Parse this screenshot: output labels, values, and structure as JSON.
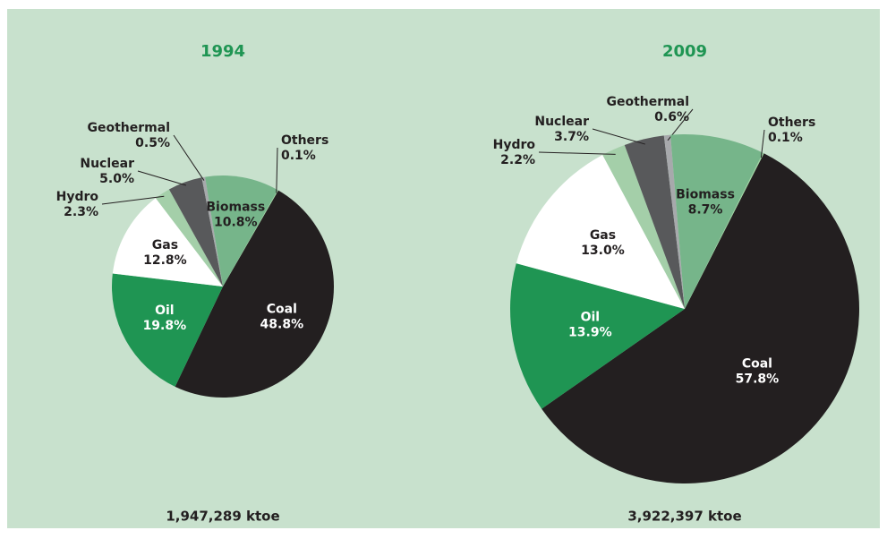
{
  "chart_data": [
    {
      "type": "pie",
      "title": "1994",
      "categories": [
        "Coal",
        "Oil",
        "Gas",
        "Hydro",
        "Nuclear",
        "Geothermal",
        "Biomass",
        "Others"
      ],
      "values": [
        48.8,
        19.8,
        12.8,
        2.3,
        5.0,
        0.5,
        10.8,
        0.1
      ],
      "value_labels": [
        "48.8%",
        "19.8%",
        "12.8%",
        "2.3%",
        "5.0%",
        "0.5%",
        "10.8%",
        "0.1%"
      ],
      "colors": [
        "#231f20",
        "#1f9553",
        "#ffffff",
        "#a4cfa9",
        "#58595b",
        "#a7a9ac",
        "#76b58a",
        "#9fd3a0"
      ],
      "footnote": "1,947,289 ktoe"
    },
    {
      "type": "pie",
      "title": "2009",
      "categories": [
        "Coal",
        "Oil",
        "Gas",
        "Hydro",
        "Nuclear",
        "Geothermal",
        "Biomass",
        "Others"
      ],
      "values": [
        57.8,
        13.9,
        13.0,
        2.2,
        3.7,
        0.6,
        8.7,
        0.1
      ],
      "value_labels": [
        "57.8%",
        "13.9%",
        "13.0%",
        "2.2%",
        "3.7%",
        "0.6%",
        "8.7%",
        "0.1%"
      ],
      "colors": [
        "#231f20",
        "#1f9553",
        "#ffffff",
        "#a4cfa9",
        "#58595b",
        "#a7a9ac",
        "#76b58a",
        "#9fd3a0"
      ],
      "footnote": "3,922,397 ktoe"
    }
  ]
}
